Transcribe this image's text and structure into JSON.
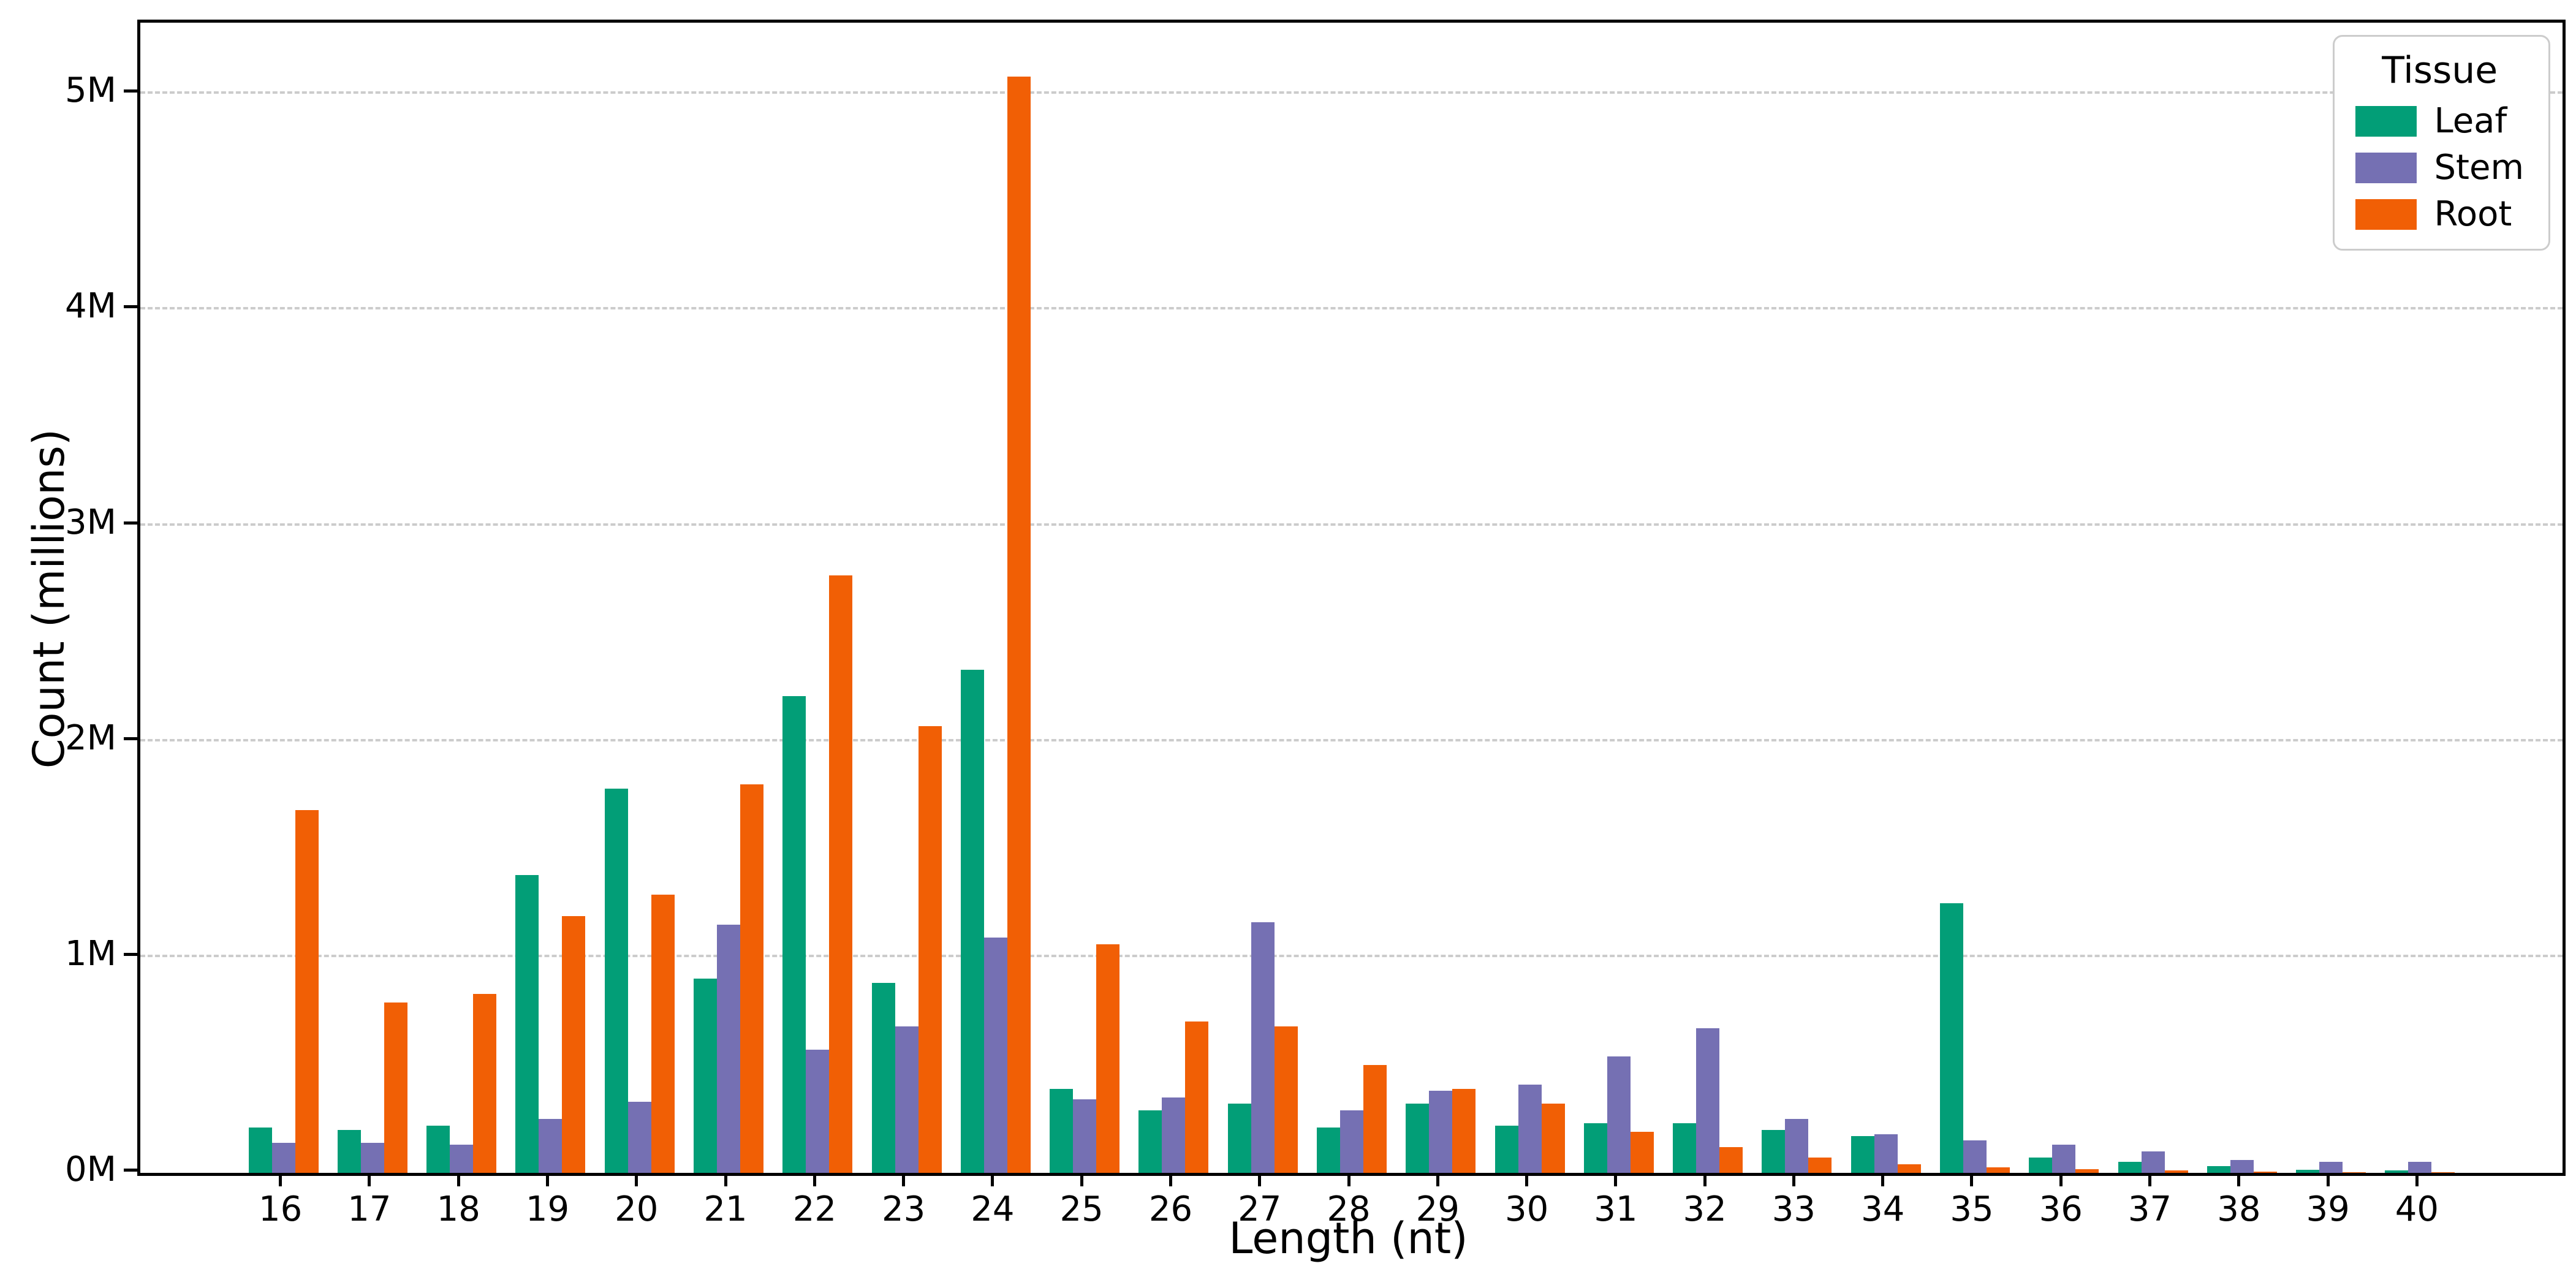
{
  "chart_data": {
    "type": "bar",
    "title": "",
    "xlabel": "Length (nt)",
    "ylabel": "Count (millions)",
    "categories": [
      16,
      17,
      18,
      19,
      20,
      21,
      22,
      23,
      24,
      25,
      26,
      27,
      28,
      29,
      30,
      31,
      32,
      33,
      34,
      35,
      36,
      37,
      38,
      39,
      40
    ],
    "series": [
      {
        "name": "Leaf",
        "color": "#029e77",
        "values": [
          0.21,
          0.2,
          0.22,
          1.38,
          1.78,
          0.9,
          2.21,
          0.88,
          2.33,
          0.39,
          0.29,
          0.32,
          0.21,
          0.32,
          0.22,
          0.23,
          0.23,
          0.2,
          0.17,
          1.25,
          0.07,
          0.05,
          0.03,
          0.015,
          0.01
        ]
      },
      {
        "name": "Stem",
        "color": "#7570b3",
        "values": [
          0.14,
          0.14,
          0.13,
          0.25,
          0.33,
          1.15,
          0.57,
          0.68,
          1.09,
          0.34,
          0.35,
          1.16,
          0.29,
          0.38,
          0.41,
          0.54,
          0.67,
          0.25,
          0.18,
          0.15,
          0.13,
          0.1,
          0.06,
          0.05,
          0.05
        ]
      },
      {
        "name": "Root",
        "color": "#f15f05",
        "values": [
          1.68,
          0.79,
          0.83,
          1.19,
          1.29,
          1.8,
          2.77,
          2.07,
          5.08,
          1.06,
          0.7,
          0.68,
          0.5,
          0.39,
          0.32,
          0.19,
          0.12,
          0.07,
          0.04,
          0.025,
          0.018,
          0.01,
          0.006,
          0.004,
          0.003
        ]
      }
    ],
    "yticks": [
      "0M",
      "1M",
      "2M",
      "3M",
      "4M",
      "5M"
    ],
    "ytick_values": [
      0,
      1,
      2,
      3,
      4,
      5
    ],
    "ylim": [
      0,
      5.33
    ],
    "grid": "horizontal-dashed",
    "legend_title": "Tissue",
    "legend_position": "top-right"
  },
  "legend": {
    "title": "Tissue",
    "entries": [
      "Leaf",
      "Stem",
      "Root"
    ]
  },
  "axes": {
    "xlabel": "Length (nt)",
    "ylabel": "Count (millions)"
  },
  "colors": {
    "leaf": "#029e77",
    "stem": "#7570b3",
    "root": "#f15f05",
    "gridline": "#cccccc",
    "spine": "#000000",
    "background": "#ffffff"
  }
}
